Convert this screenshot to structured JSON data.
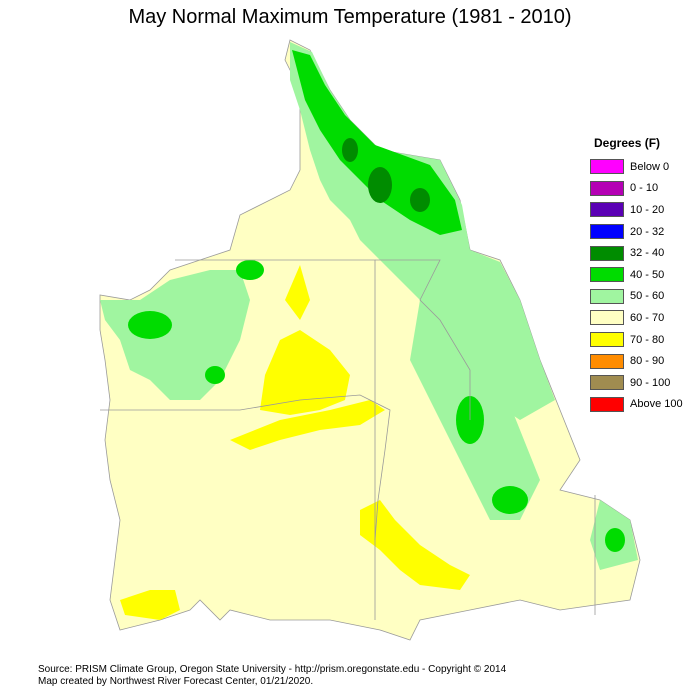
{
  "title": "May Normal Maximum Temperature (1981 - 2010)",
  "legend": {
    "title": "Degrees (F)",
    "items": [
      {
        "label": "Below 0",
        "color": "#ff00ff"
      },
      {
        "label": "0 - 10",
        "color": "#b400b4"
      },
      {
        "label": "10 - 20",
        "color": "#5a00b4"
      },
      {
        "label": "20 - 32",
        "color": "#0000ff"
      },
      {
        "label": "32 - 40",
        "color": "#008c00"
      },
      {
        "label": "40 - 50",
        "color": "#00dc00"
      },
      {
        "label": "50 - 60",
        "color": "#a0f5a0"
      },
      {
        "label": "60 - 70",
        "color": "#ffffc3"
      },
      {
        "label": "70 - 80",
        "color": "#ffff00"
      },
      {
        "label": "80 - 90",
        "color": "#ff8c00"
      },
      {
        "label": "90 - 100",
        "color": "#a08c50"
      },
      {
        "label": "Above 100",
        "color": "#ff0000"
      }
    ]
  },
  "credits": {
    "line1": "Source: PRISM Climate Group, Oregon State University - http://prism.oregonstate.edu - Copyright © 2014",
    "line2": "Map created by Northwest River Forecast Center, 01/21/2020."
  }
}
